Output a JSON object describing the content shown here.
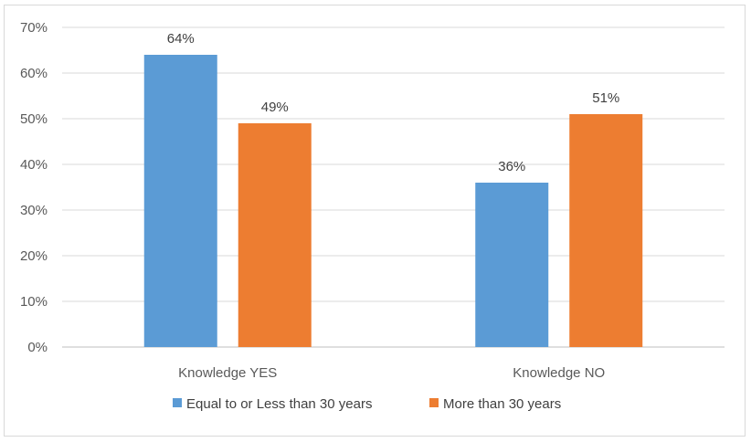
{
  "chart_data": {
    "type": "bar",
    "categories": [
      "Knowledge YES",
      "Knowledge NO"
    ],
    "series": [
      {
        "name": "Equal to or Less than 30 years",
        "values": [
          64,
          36
        ],
        "labels": [
          "64%",
          "36%"
        ],
        "color": "#5b9bd5"
      },
      {
        "name": "More than 30 years",
        "values": [
          49,
          51
        ],
        "labels": [
          "49%",
          "51%"
        ],
        "color": "#ed7d31"
      }
    ],
    "ylim": [
      0,
      70
    ],
    "yticks": [
      0,
      10,
      20,
      30,
      40,
      50,
      60,
      70
    ],
    "ytick_labels": [
      "0%",
      "10%",
      "20%",
      "30%",
      "40%",
      "50%",
      "60%",
      "70%"
    ],
    "grid": true,
    "legend_position": "bottom",
    "gridline_color": "#d9d9d9",
    "axis_color": "#bfbfbf"
  }
}
